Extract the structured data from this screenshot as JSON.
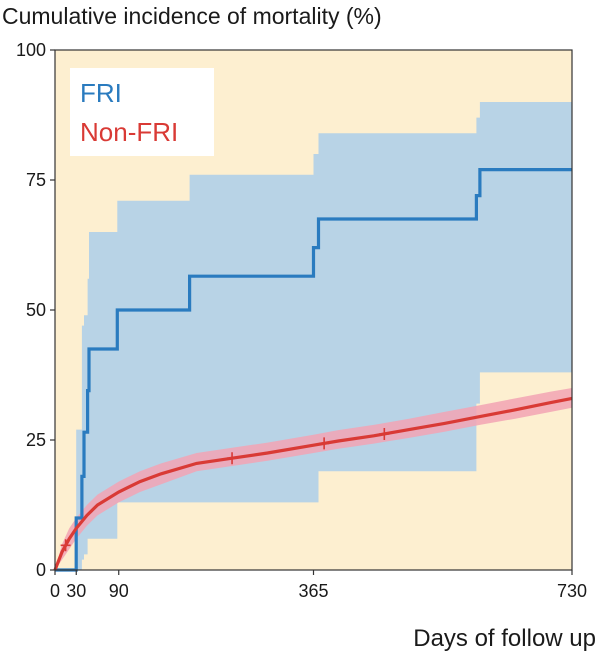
{
  "chart_data": {
    "type": "line",
    "title": "Cumulative incidence of mortality (%)",
    "xlabel": "Days of follow up",
    "ylabel": "",
    "xlim": [
      0,
      730
    ],
    "ylim": [
      0,
      100
    ],
    "x_ticks": [
      0,
      30,
      90,
      365,
      730
    ],
    "y_ticks": [
      0,
      25,
      50,
      75,
      100
    ],
    "legend_position": "top-left",
    "background_color": "#fdefd0",
    "series": [
      {
        "name": "FRI",
        "color": "#2a7bbf",
        "band_color": "#b8d3e6",
        "step": true,
        "x": [
          0,
          30,
          38,
          41,
          46,
          48,
          62,
          88,
          190,
          365,
          372,
          595,
          600,
          730
        ],
        "y": [
          0,
          10,
          18,
          26.5,
          34.5,
          42.5,
          42.5,
          50,
          56.5,
          62,
          67.5,
          72,
          77,
          77
        ],
        "ci_lower": [
          0,
          0,
          2,
          3,
          6,
          6,
          6,
          13,
          13,
          13,
          19,
          32,
          38,
          44
        ],
        "ci_upper": [
          0,
          27,
          47,
          49,
          56,
          65,
          65,
          71,
          76,
          80,
          84,
          87,
          90,
          90
        ]
      },
      {
        "name": "Non-FRI",
        "color": "#d93a35",
        "band_color": "#f2a3b4",
        "step": false,
        "x": [
          0,
          10,
          20,
          30,
          45,
          60,
          90,
          120,
          150,
          200,
          250,
          300,
          365,
          400,
          450,
          500,
          550,
          600,
          650,
          700,
          730
        ],
        "y": [
          0,
          3.5,
          6,
          8,
          10.5,
          12.5,
          15,
          17,
          18.5,
          20.5,
          21.5,
          22.5,
          24,
          24.8,
          25.8,
          27,
          28.2,
          29.5,
          30.8,
          32.2,
          33
        ],
        "ci_lower": [
          0,
          2,
          4,
          6,
          8.5,
          10.5,
          13,
          15,
          16.5,
          19,
          20,
          21,
          22.5,
          23.3,
          24.3,
          25.4,
          26.6,
          27.9,
          29.1,
          30.4,
          31.2
        ],
        "ci_upper": [
          0,
          5,
          8,
          10,
          12.5,
          14.5,
          17,
          19,
          20.5,
          22.5,
          23.5,
          24.5,
          26,
          26.9,
          27.9,
          29.1,
          30.4,
          31.7,
          33,
          34.3,
          35
        ],
        "censor_x": [
          15,
          250,
          380,
          465
        ]
      }
    ]
  }
}
